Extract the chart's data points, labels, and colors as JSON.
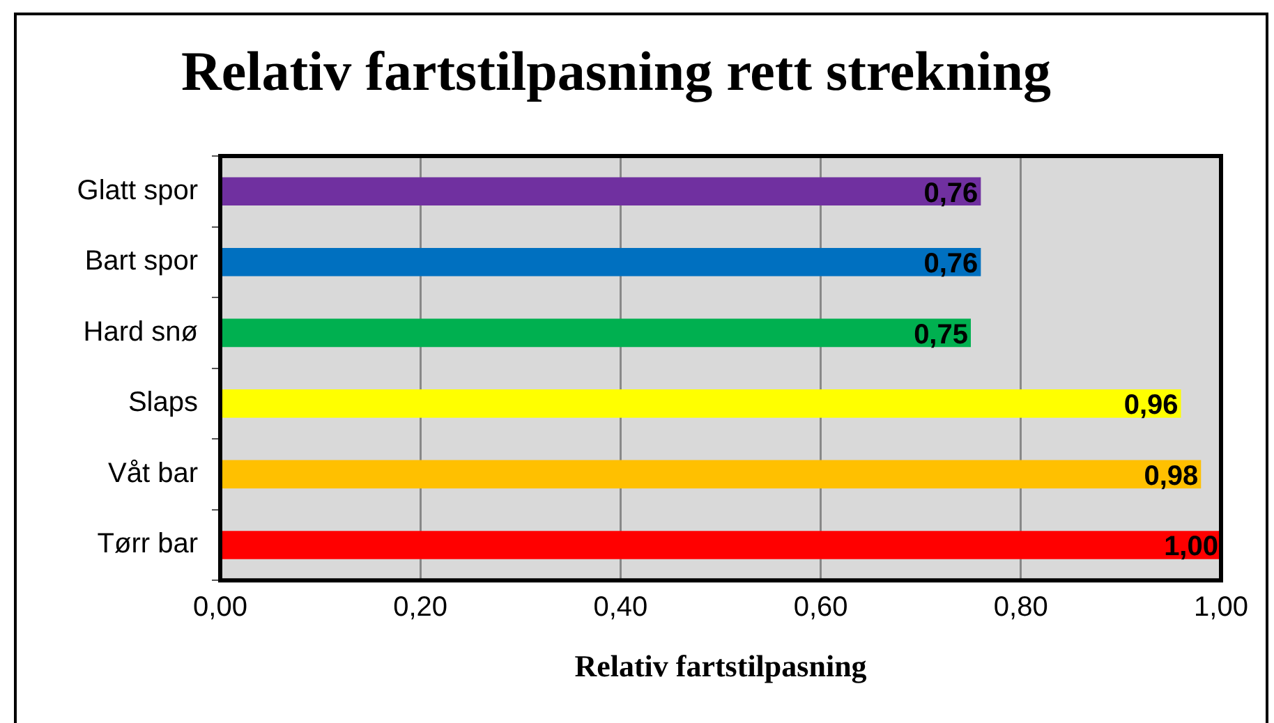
{
  "chart_data": {
    "type": "bar",
    "orientation": "horizontal",
    "title": "Relativ fartstilpasning rett strekning",
    "xlabel": "Relativ fartstilpasning",
    "categories": [
      "Glatt spor",
      "Bart spor",
      "Hard snø",
      "Slaps",
      "Våt bar",
      "Tørr bar"
    ],
    "values": [
      0.76,
      0.76,
      0.75,
      0.96,
      0.98,
      1.0
    ],
    "colors": [
      "#7030a0",
      "#0070c0",
      "#00b050",
      "#ffff00",
      "#ffc000",
      "#ff0000"
    ],
    "xlim": [
      0,
      1
    ],
    "xticks": [
      {
        "value": 0,
        "label": "0,00"
      },
      {
        "value": 0.2,
        "label": "0,20"
      },
      {
        "value": 0.4,
        "label": "0,40"
      },
      {
        "value": 0.6,
        "label": "0,60"
      },
      {
        "value": 0.8,
        "label": "0,80"
      },
      {
        "value": 1,
        "label": "1,00"
      }
    ],
    "value_labels": [
      "0,76",
      "0,76",
      "0,75",
      "0,96",
      "0,98",
      "1,00"
    ],
    "grid": "x",
    "legend": false
  }
}
